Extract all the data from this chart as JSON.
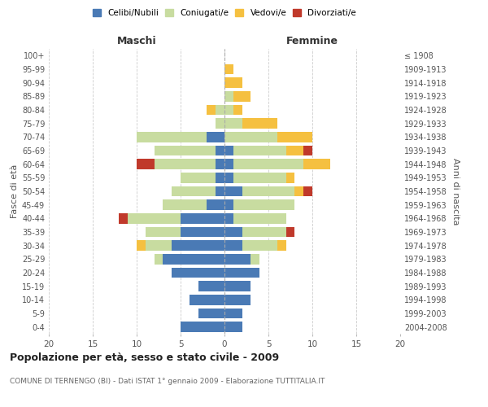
{
  "age_groups": [
    "0-4",
    "5-9",
    "10-14",
    "15-19",
    "20-24",
    "25-29",
    "30-34",
    "35-39",
    "40-44",
    "45-49",
    "50-54",
    "55-59",
    "60-64",
    "65-69",
    "70-74",
    "75-79",
    "80-84",
    "85-89",
    "90-94",
    "95-99",
    "100+"
  ],
  "birth_years": [
    "2004-2008",
    "1999-2003",
    "1994-1998",
    "1989-1993",
    "1984-1988",
    "1979-1983",
    "1974-1978",
    "1969-1973",
    "1964-1968",
    "1959-1963",
    "1954-1958",
    "1949-1953",
    "1944-1948",
    "1939-1943",
    "1934-1938",
    "1929-1933",
    "1924-1928",
    "1919-1923",
    "1914-1918",
    "1909-1913",
    "≤ 1908"
  ],
  "males": {
    "celibi": [
      5,
      3,
      4,
      3,
      6,
      7,
      6,
      5,
      5,
      2,
      1,
      1,
      1,
      1,
      2,
      0,
      0,
      0,
      0,
      0,
      0
    ],
    "coniugati": [
      0,
      0,
      0,
      0,
      0,
      1,
      3,
      4,
      6,
      5,
      5,
      4,
      7,
      7,
      8,
      1,
      1,
      0,
      0,
      0,
      0
    ],
    "vedovi": [
      0,
      0,
      0,
      0,
      0,
      0,
      1,
      0,
      0,
      0,
      0,
      0,
      0,
      0,
      0,
      0,
      1,
      0,
      0,
      0,
      0
    ],
    "divorziati": [
      0,
      0,
      0,
      0,
      0,
      0,
      0,
      0,
      1,
      0,
      0,
      0,
      2,
      0,
      0,
      0,
      0,
      0,
      0,
      0,
      0
    ]
  },
  "females": {
    "nubili": [
      2,
      2,
      3,
      3,
      4,
      3,
      2,
      2,
      1,
      1,
      2,
      1,
      1,
      1,
      0,
      0,
      0,
      0,
      0,
      0,
      0
    ],
    "coniugate": [
      0,
      0,
      0,
      0,
      0,
      1,
      4,
      5,
      6,
      7,
      6,
      6,
      8,
      6,
      6,
      2,
      1,
      1,
      0,
      0,
      0
    ],
    "vedove": [
      0,
      0,
      0,
      0,
      0,
      0,
      1,
      0,
      0,
      0,
      1,
      1,
      3,
      2,
      4,
      4,
      1,
      2,
      2,
      1,
      0
    ],
    "divorziate": [
      0,
      0,
      0,
      0,
      0,
      0,
      0,
      1,
      0,
      0,
      1,
      0,
      0,
      1,
      0,
      0,
      0,
      0,
      0,
      0,
      0
    ]
  },
  "colors": {
    "celibi_nubili": "#4a7ab5",
    "coniugati": "#c8dca0",
    "vedovi": "#f5c040",
    "divorziati": "#c0392b"
  },
  "xlim": 20,
  "title": "Popolazione per età, sesso e stato civile - 2009",
  "subtitle": "COMUNE DI TERNENGO (BI) - Dati ISTAT 1° gennaio 2009 - Elaborazione TUTTITALIA.IT",
  "ylabel_left": "Fasce di età",
  "ylabel_right": "Anni di nascita",
  "xlabel_left": "Maschi",
  "xlabel_right": "Femmine",
  "background_color": "#ffffff",
  "grid_color": "#cccccc"
}
